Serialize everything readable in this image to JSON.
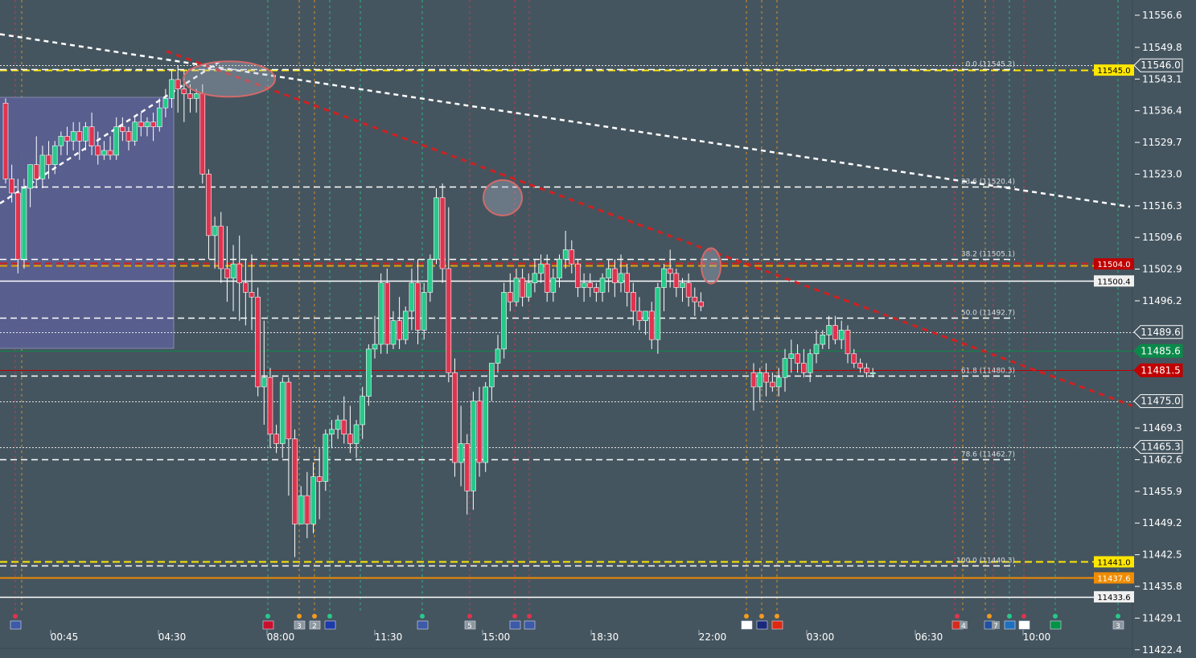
{
  "chart_data": {
    "type": "candlestick",
    "price_axis": {
      "ticks": [
        "11556.6",
        "11549.8",
        "11543.1",
        "11536.4",
        "11529.7",
        "11523.0",
        "11516.3",
        "11509.6",
        "11502.9",
        "11496.2",
        "11469.3",
        "11462.6",
        "11455.9",
        "11449.2",
        "11442.5",
        "11435.8",
        "11429.1",
        "11422.4"
      ],
      "range": [
        11421.0,
        11560.5
      ]
    },
    "time_axis": {
      "ticks": [
        "00:45",
        "04:30",
        "08:00",
        "11:30",
        "15:00",
        "18:30",
        "22:00",
        "03:00",
        "06:30",
        "10:00"
      ]
    },
    "fib_levels": [
      {
        "label": "0.0 (11545.2)",
        "value": 11545.2
      },
      {
        "label": "23.6 (11520.4)",
        "value": 11520.4
      },
      {
        "label": "38.2 (11505.1)",
        "value": 11505.1
      },
      {
        "label": "50.0 (11492.7)",
        "value": 11492.7
      },
      {
        "label": "61.8 (11480.3)",
        "value": 11480.3
      },
      {
        "label": "78.6 (11462.7)",
        "value": 11462.7
      },
      {
        "label": "100.0 (11440.3)",
        "value": 11440.3
      }
    ],
    "price_levels": [
      {
        "label": "11546.0",
        "value": 11546.0,
        "color": "#ffffff",
        "style": "dotted",
        "tag": "arrow-outline"
      },
      {
        "label": "11545.0",
        "value": 11545.0,
        "color": "#ffe600",
        "style": "dashed",
        "tag": "box-yellow"
      },
      {
        "label": "11504.0",
        "value": 11504.0,
        "color": "#e8a000",
        "style": "dashed-red",
        "tag": "box-red"
      },
      {
        "label": "11500.4",
        "value": 11500.4,
        "color": "#ffffff",
        "style": "solid",
        "tag": "box-white"
      },
      {
        "label": "11489.6",
        "value": 11489.6,
        "color": "#ffffff",
        "style": "dotted",
        "tag": "arrow-outline"
      },
      {
        "label": "11485.6",
        "value": 11485.6,
        "color": "#0a8a4a",
        "style": "thin",
        "tag": "arrow-green"
      },
      {
        "label": "11481.5",
        "value": 11481.5,
        "color": "#c00000",
        "style": "thin",
        "tag": "arrow-red"
      },
      {
        "label": "11475.0",
        "value": 11475.0,
        "color": "#ffffff",
        "style": "dotted",
        "tag": "arrow-outline"
      },
      {
        "label": "11465.3",
        "value": 11465.3,
        "color": "#ffffff",
        "style": "dotted",
        "tag": "arrow-outline"
      },
      {
        "label": "11441.0",
        "value": 11441.0,
        "color": "#ffe600",
        "style": "dashed",
        "tag": "box-yellow"
      },
      {
        "label": "11437.6",
        "value": 11437.6,
        "color": "#f08c00",
        "style": "solid",
        "tag": "box-orange"
      },
      {
        "label": "11433.6",
        "value": 11433.6,
        "color": "#ffffff",
        "style": "solid",
        "tag": "box-white"
      }
    ],
    "candles": [
      {
        "o": 11538,
        "h": 11539,
        "c": 11522,
        "l": 11521
      },
      {
        "o": 11522,
        "h": 11525,
        "c": 11519,
        "l": 11517
      },
      {
        "o": 11519,
        "h": 11522,
        "c": 11505,
        "l": 11502
      },
      {
        "o": 11505,
        "h": 11522,
        "c": 11520,
        "l": 11503
      },
      {
        "o": 11520,
        "h": 11524,
        "c": 11525,
        "l": 11516
      },
      {
        "o": 11525,
        "h": 11531,
        "c": 11522,
        "l": 11520
      },
      {
        "o": 11522,
        "h": 11529,
        "c": 11527,
        "l": 11520
      },
      {
        "o": 11527,
        "h": 11530,
        "c": 11525,
        "l": 11522
      },
      {
        "o": 11525,
        "h": 11530,
        "c": 11529,
        "l": 11523
      },
      {
        "o": 11529,
        "h": 11532,
        "c": 11531,
        "l": 11527
      },
      {
        "o": 11531,
        "h": 11533,
        "c": 11530,
        "l": 11527
      },
      {
        "o": 11530,
        "h": 11534,
        "c": 11532,
        "l": 11528
      },
      {
        "o": 11532,
        "h": 11534,
        "c": 11530,
        "l": 11526
      },
      {
        "o": 11530,
        "h": 11534,
        "c": 11533,
        "l": 11528
      },
      {
        "o": 11533,
        "h": 11536,
        "c": 11529,
        "l": 11527
      },
      {
        "o": 11529,
        "h": 11532,
        "c": 11527,
        "l": 11525
      },
      {
        "o": 11527,
        "h": 11530,
        "c": 11528,
        "l": 11526
      },
      {
        "o": 11528,
        "h": 11531,
        "c": 11527,
        "l": 11526
      },
      {
        "o": 11527,
        "h": 11535,
        "c": 11533,
        "l": 11526
      },
      {
        "o": 11533,
        "h": 11535,
        "c": 11532,
        "l": 11530
      },
      {
        "o": 11532,
        "h": 11533,
        "c": 11530,
        "l": 11528
      },
      {
        "o": 11530,
        "h": 11535,
        "c": 11534,
        "l": 11529
      },
      {
        "o": 11534,
        "h": 11536,
        "c": 11533,
        "l": 11531
      },
      {
        "o": 11533,
        "h": 11535,
        "c": 11534,
        "l": 11531
      },
      {
        "o": 11534,
        "h": 11536,
        "c": 11533,
        "l": 11530
      },
      {
        "o": 11533,
        "h": 11539,
        "c": 11537,
        "l": 11532
      },
      {
        "o": 11537,
        "h": 11541,
        "c": 11539,
        "l": 11535
      },
      {
        "o": 11539,
        "h": 11545,
        "c": 11543,
        "l": 11537
      },
      {
        "o": 11543,
        "h": 11546,
        "c": 11541,
        "l": 11536
      },
      {
        "o": 11541,
        "h": 11545,
        "c": 11540,
        "l": 11534
      },
      {
        "o": 11540,
        "h": 11542,
        "c": 11539,
        "l": 11536
      },
      {
        "o": 11539,
        "h": 11541,
        "c": 11540,
        "l": 11536
      },
      {
        "o": 11540,
        "h": 11542,
        "c": 11523,
        "l": 11521
      },
      {
        "o": 11523,
        "h": 11524,
        "c": 11510,
        "l": 11505
      },
      {
        "o": 11510,
        "h": 11514,
        "c": 11512,
        "l": 11503
      },
      {
        "o": 11512,
        "h": 11515,
        "c": 11503,
        "l": 11500
      },
      {
        "o": 11503,
        "h": 11512,
        "c": 11501,
        "l": 11496
      },
      {
        "o": 11501,
        "h": 11508,
        "c": 11504,
        "l": 11494
      },
      {
        "o": 11504,
        "h": 11510,
        "c": 11500,
        "l": 11492
      },
      {
        "o": 11500,
        "h": 11505,
        "c": 11498,
        "l": 11491
      },
      {
        "o": 11498,
        "h": 11506,
        "c": 11497,
        "l": 11490
      },
      {
        "o": 11497,
        "h": 11499,
        "c": 11478,
        "l": 11476
      },
      {
        "o": 11478,
        "h": 11492,
        "c": 11480,
        "l": 11470
      },
      {
        "o": 11480,
        "h": 11482,
        "c": 11468,
        "l": 11465
      },
      {
        "o": 11468,
        "h": 11470,
        "c": 11466,
        "l": 11464
      },
      {
        "o": 11466,
        "h": 11480,
        "c": 11479,
        "l": 11463
      },
      {
        "o": 11479,
        "h": 11480,
        "c": 11467,
        "l": 11455
      },
      {
        "o": 11467,
        "h": 11469,
        "c": 11449,
        "l": 11442
      },
      {
        "o": 11449,
        "h": 11457,
        "c": 11455,
        "l": 11449
      },
      {
        "o": 11455,
        "h": 11460,
        "c": 11449,
        "l": 11446
      },
      {
        "o": 11449,
        "h": 11462,
        "c": 11459,
        "l": 11447
      },
      {
        "o": 11459,
        "h": 11465,
        "c": 11458,
        "l": 11450
      },
      {
        "o": 11458,
        "h": 11469,
        "c": 11468,
        "l": 11456
      },
      {
        "o": 11468,
        "h": 11471,
        "c": 11469,
        "l": 11465
      },
      {
        "o": 11469,
        "h": 11472,
        "c": 11471,
        "l": 11467
      },
      {
        "o": 11471,
        "h": 11476,
        "c": 11468,
        "l": 11466
      },
      {
        "o": 11468,
        "h": 11474,
        "c": 11466,
        "l": 11464
      },
      {
        "o": 11466,
        "h": 11471,
        "c": 11470,
        "l": 11463
      },
      {
        "o": 11470,
        "h": 11478,
        "c": 11476,
        "l": 11467
      },
      {
        "o": 11476,
        "h": 11487,
        "c": 11486,
        "l": 11474
      },
      {
        "o": 11486,
        "h": 11493,
        "c": 11487,
        "l": 11484
      },
      {
        "o": 11487,
        "h": 11502,
        "c": 11500,
        "l": 11485
      },
      {
        "o": 11500,
        "h": 11503,
        "c": 11487,
        "l": 11485
      },
      {
        "o": 11487,
        "h": 11494,
        "c": 11492,
        "l": 11486
      },
      {
        "o": 11492,
        "h": 11497,
        "c": 11488,
        "l": 11486
      },
      {
        "o": 11488,
        "h": 11495,
        "c": 11494,
        "l": 11487
      },
      {
        "o": 11494,
        "h": 11503,
        "c": 11500,
        "l": 11490
      },
      {
        "o": 11500,
        "h": 11505,
        "c": 11490,
        "l": 11487
      },
      {
        "o": 11490,
        "h": 11500,
        "c": 11498,
        "l": 11488
      },
      {
        "o": 11498,
        "h": 11506,
        "c": 11505,
        "l": 11496
      },
      {
        "o": 11505,
        "h": 11520,
        "c": 11518,
        "l": 11504
      },
      {
        "o": 11518,
        "h": 11521,
        "c": 11503,
        "l": 11500
      },
      {
        "o": 11503,
        "h": 11516,
        "c": 11481,
        "l": 11479
      },
      {
        "o": 11481,
        "h": 11484,
        "c": 11462,
        "l": 11459
      },
      {
        "o": 11462,
        "h": 11474,
        "c": 11466,
        "l": 11457
      },
      {
        "o": 11466,
        "h": 11468,
        "c": 11456,
        "l": 11451
      },
      {
        "o": 11456,
        "h": 11477,
        "c": 11475,
        "l": 11452
      },
      {
        "o": 11475,
        "h": 11478,
        "c": 11462,
        "l": 11459
      },
      {
        "o": 11462,
        "h": 11479,
        "c": 11478,
        "l": 11460
      },
      {
        "o": 11478,
        "h": 11483,
        "c": 11483,
        "l": 11475
      },
      {
        "o": 11483,
        "h": 11489,
        "c": 11486,
        "l": 11481
      },
      {
        "o": 11486,
        "h": 11500,
        "c": 11498,
        "l": 11484
      },
      {
        "o": 11498,
        "h": 11502,
        "c": 11496,
        "l": 11494
      },
      {
        "o": 11496,
        "h": 11503,
        "c": 11501,
        "l": 11495
      },
      {
        "o": 11501,
        "h": 11503,
        "c": 11497,
        "l": 11495
      },
      {
        "o": 11497,
        "h": 11502,
        "c": 11500,
        "l": 11496
      },
      {
        "o": 11500,
        "h": 11505,
        "c": 11502,
        "l": 11498
      },
      {
        "o": 11502,
        "h": 11506,
        "c": 11504,
        "l": 11500
      },
      {
        "o": 11504,
        "h": 11506,
        "c": 11498,
        "l": 11496
      },
      {
        "o": 11498,
        "h": 11503,
        "c": 11501,
        "l": 11496
      },
      {
        "o": 11501,
        "h": 11506,
        "c": 11505,
        "l": 11499
      },
      {
        "o": 11505,
        "h": 11511,
        "c": 11507,
        "l": 11503
      },
      {
        "o": 11507,
        "h": 11509,
        "c": 11504,
        "l": 11502
      },
      {
        "o": 11504,
        "h": 11505,
        "c": 11499,
        "l": 11497
      },
      {
        "o": 11499,
        "h": 11502,
        "c": 11500,
        "l": 11496
      },
      {
        "o": 11500,
        "h": 11502,
        "c": 11499,
        "l": 11497
      },
      {
        "o": 11499,
        "h": 11500,
        "c": 11498,
        "l": 11496
      },
      {
        "o": 11498,
        "h": 11502,
        "c": 11501,
        "l": 11496
      },
      {
        "o": 11501,
        "h": 11505,
        "c": 11503,
        "l": 11498
      },
      {
        "o": 11503,
        "h": 11505,
        "c": 11500,
        "l": 11497
      },
      {
        "o": 11500,
        "h": 11506,
        "c": 11502,
        "l": 11498
      },
      {
        "o": 11502,
        "h": 11504,
        "c": 11498,
        "l": 11495
      },
      {
        "o": 11498,
        "h": 11500,
        "c": 11494,
        "l": 11491
      },
      {
        "o": 11494,
        "h": 11497,
        "c": 11492,
        "l": 11490
      },
      {
        "o": 11492,
        "h": 11494,
        "c": 11494,
        "l": 11489
      },
      {
        "o": 11494,
        "h": 11496,
        "c": 11488,
        "l": 11486
      },
      {
        "o": 11488,
        "h": 11500,
        "c": 11499,
        "l": 11485
      },
      {
        "o": 11499,
        "h": 11504,
        "c": 11503,
        "l": 11494
      },
      {
        "o": 11503,
        "h": 11507,
        "c": 11502,
        "l": 11499
      },
      {
        "o": 11502,
        "h": 11503,
        "c": 11499,
        "l": 11497
      },
      {
        "o": 11499,
        "h": 11501,
        "c": 11500,
        "l": 11496
      },
      {
        "o": 11500,
        "h": 11502,
        "c": 11497,
        "l": 11495
      },
      {
        "o": 11497,
        "h": 11499,
        "c": 11496,
        "l": 11493
      },
      {
        "o": 11496,
        "h": 11498,
        "c": 11495,
        "l": 11494
      },
      {
        "o": 11481,
        "h": 11483,
        "c": 11478,
        "l": 11473
      },
      {
        "o": 11478,
        "h": 11482,
        "c": 11481,
        "l": 11475
      },
      {
        "o": 11481,
        "h": 11483,
        "c": 11479,
        "l": 11476
      },
      {
        "o": 11479,
        "h": 11481,
        "c": 11478,
        "l": 11477
      },
      {
        "o": 11478,
        "h": 11482,
        "c": 11480,
        "l": 11476
      },
      {
        "o": 11480,
        "h": 11486,
        "c": 11484,
        "l": 11477
      },
      {
        "o": 11484,
        "h": 11488,
        "c": 11485,
        "l": 11481
      },
      {
        "o": 11485,
        "h": 11487,
        "c": 11483,
        "l": 11481
      },
      {
        "o": 11483,
        "h": 11486,
        "c": 11481,
        "l": 11480
      },
      {
        "o": 11481,
        "h": 11486,
        "c": 11485,
        "l": 11479
      },
      {
        "o": 11485,
        "h": 11490,
        "c": 11487,
        "l": 11483
      },
      {
        "o": 11487,
        "h": 11490,
        "c": 11489,
        "l": 11486
      },
      {
        "o": 11489,
        "h": 11493,
        "c": 11491,
        "l": 11486
      },
      {
        "o": 11491,
        "h": 11493,
        "c": 11488,
        "l": 11487
      },
      {
        "o": 11488,
        "h": 11492,
        "c": 11490,
        "l": 11486
      },
      {
        "o": 11490,
        "h": 11491,
        "c": 11485,
        "l": 11483
      },
      {
        "o": 11485,
        "h": 11486,
        "c": 11483,
        "l": 11482
      },
      {
        "o": 11483,
        "h": 11484,
        "c": 11482,
        "l": 11481
      },
      {
        "o": 11482,
        "h": 11483,
        "c": 11481,
        "l": 11480
      },
      {
        "o": 11481,
        "h": 11482,
        "c": 11481,
        "l": 11480
      }
    ],
    "trendlines": [
      {
        "name": "red-dashed",
        "from": [
          0,
          11549.0
        ],
        "to": [
          1,
          11473.0
        ],
        "color": "#d02020"
      },
      {
        "name": "white-dashed-top",
        "from": [
          0,
          11552.0
        ],
        "to": [
          1,
          11516.0
        ],
        "color": "#ffffff"
      },
      {
        "name": "white-dashed-up",
        "from": [
          0,
          11517.0
        ],
        "to": [
          1,
          11547.0
        ],
        "color": "#ffffff"
      }
    ],
    "events": {
      "markers": [
        {
          "label": "",
          "flag": "us"
        },
        {
          "label": "",
          "flag": "no"
        },
        {
          "label": "3",
          "flag": "box"
        },
        {
          "label": "2",
          "flag": "box"
        },
        {
          "label": "",
          "flag": "eu"
        },
        {
          "label": "",
          "flag": "us"
        },
        {
          "label": "5",
          "flag": "box"
        },
        {
          "label": "",
          "flag": "us"
        },
        {
          "label": "",
          "flag": "us"
        },
        {
          "label": "",
          "flag": "jp"
        },
        {
          "label": "",
          "flag": "au"
        },
        {
          "label": "",
          "flag": "cn"
        },
        {
          "label": "4",
          "flag": "ch"
        },
        {
          "label": "7",
          "flag": "fr"
        },
        {
          "label": "",
          "flag": "se"
        },
        {
          "label": "",
          "flag": "pl"
        },
        {
          "label": "",
          "flag": "it"
        },
        {
          "label": "3",
          "flag": "box"
        }
      ]
    },
    "grid": true,
    "colors": {
      "background": "#45555f",
      "up": "#26c98a",
      "down": "#e0334e",
      "axis_text": "#ffffff"
    }
  }
}
